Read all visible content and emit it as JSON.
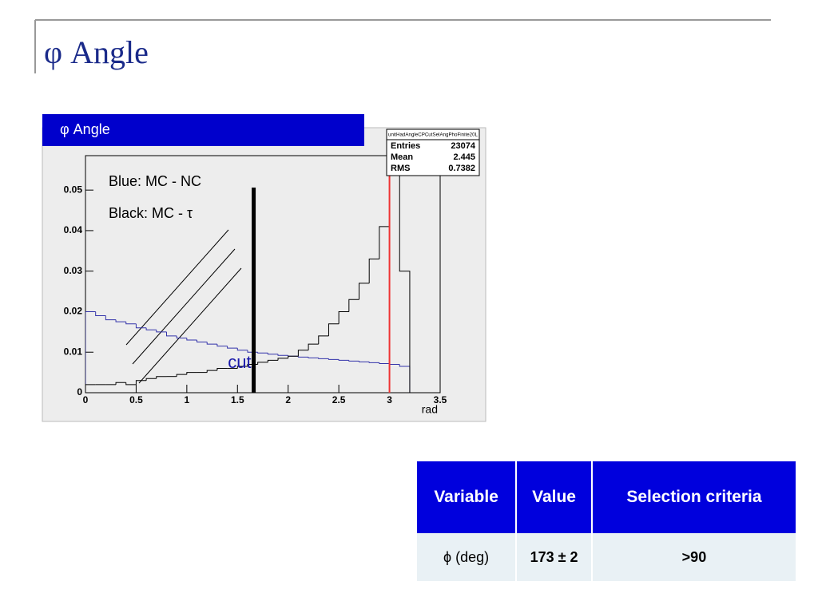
{
  "slide": {
    "title": "φ Angle"
  },
  "chart_data": {
    "type": "histogram",
    "title": "φ Angle",
    "bins": [
      0,
      0.1,
      0.2,
      0.3,
      0.4,
      0.5,
      0.6,
      0.7,
      0.8,
      0.9,
      1.0,
      1.1,
      1.2,
      1.3,
      1.4,
      1.5,
      1.6,
      1.7,
      1.8,
      1.9,
      2.0,
      2.1,
      2.2,
      2.3,
      2.4,
      2.5,
      2.6,
      2.7,
      2.8,
      2.9,
      3.0,
      3.1,
      3.2
    ],
    "series": [
      {
        "name": "Blue: MC - NC",
        "color": "#3333aa",
        "values": [
          0.02,
          0.019,
          0.018,
          0.0175,
          0.017,
          0.016,
          0.0155,
          0.015,
          0.014,
          0.0135,
          0.013,
          0.0125,
          0.012,
          0.0115,
          0.011,
          0.0105,
          0.01,
          0.0098,
          0.0095,
          0.0092,
          0.009,
          0.0088,
          0.0086,
          0.0084,
          0.0082,
          0.008,
          0.0078,
          0.0076,
          0.0074,
          0.0072,
          0.007,
          0.0065
        ]
      },
      {
        "name": "Black: MC - τ",
        "color": "#000000",
        "values": [
          0.002,
          0.002,
          0.002,
          0.0025,
          0.002,
          0.003,
          0.0035,
          0.004,
          0.004,
          0.0045,
          0.005,
          0.005,
          0.0055,
          0.006,
          0.006,
          0.0065,
          0.007,
          0.0075,
          0.008,
          0.0085,
          0.009,
          0.0105,
          0.012,
          0.014,
          0.017,
          0.02,
          0.023,
          0.027,
          0.033,
          0.041,
          0.058,
          0.03
        ]
      }
    ],
    "xlim": [
      0,
      3.5
    ],
    "ylim": [
      0,
      0.0585
    ],
    "xticks": [
      0,
      0.5,
      1,
      1.5,
      2,
      2.5,
      3,
      3.5
    ],
    "yticks": [
      0,
      0.01,
      0.02,
      0.03,
      0.04,
      0.05
    ],
    "x_label": "rad",
    "red_line_x": 3,
    "cut": {
      "label": "cut",
      "x": 1.66
    },
    "stats": {
      "title": "unitHadAngleCPCutSelAngPhoFinite20L",
      "rows": [
        [
          "Entries",
          "23074"
        ],
        [
          "Mean",
          "2.445"
        ],
        [
          "RMS",
          "0.7382"
        ]
      ]
    }
  },
  "table": {
    "header": [
      "Variable",
      "Value",
      "Selection criteria"
    ],
    "rows": [
      [
        "ϕ (deg)",
        "173 ± 2",
        ">90"
      ]
    ]
  }
}
